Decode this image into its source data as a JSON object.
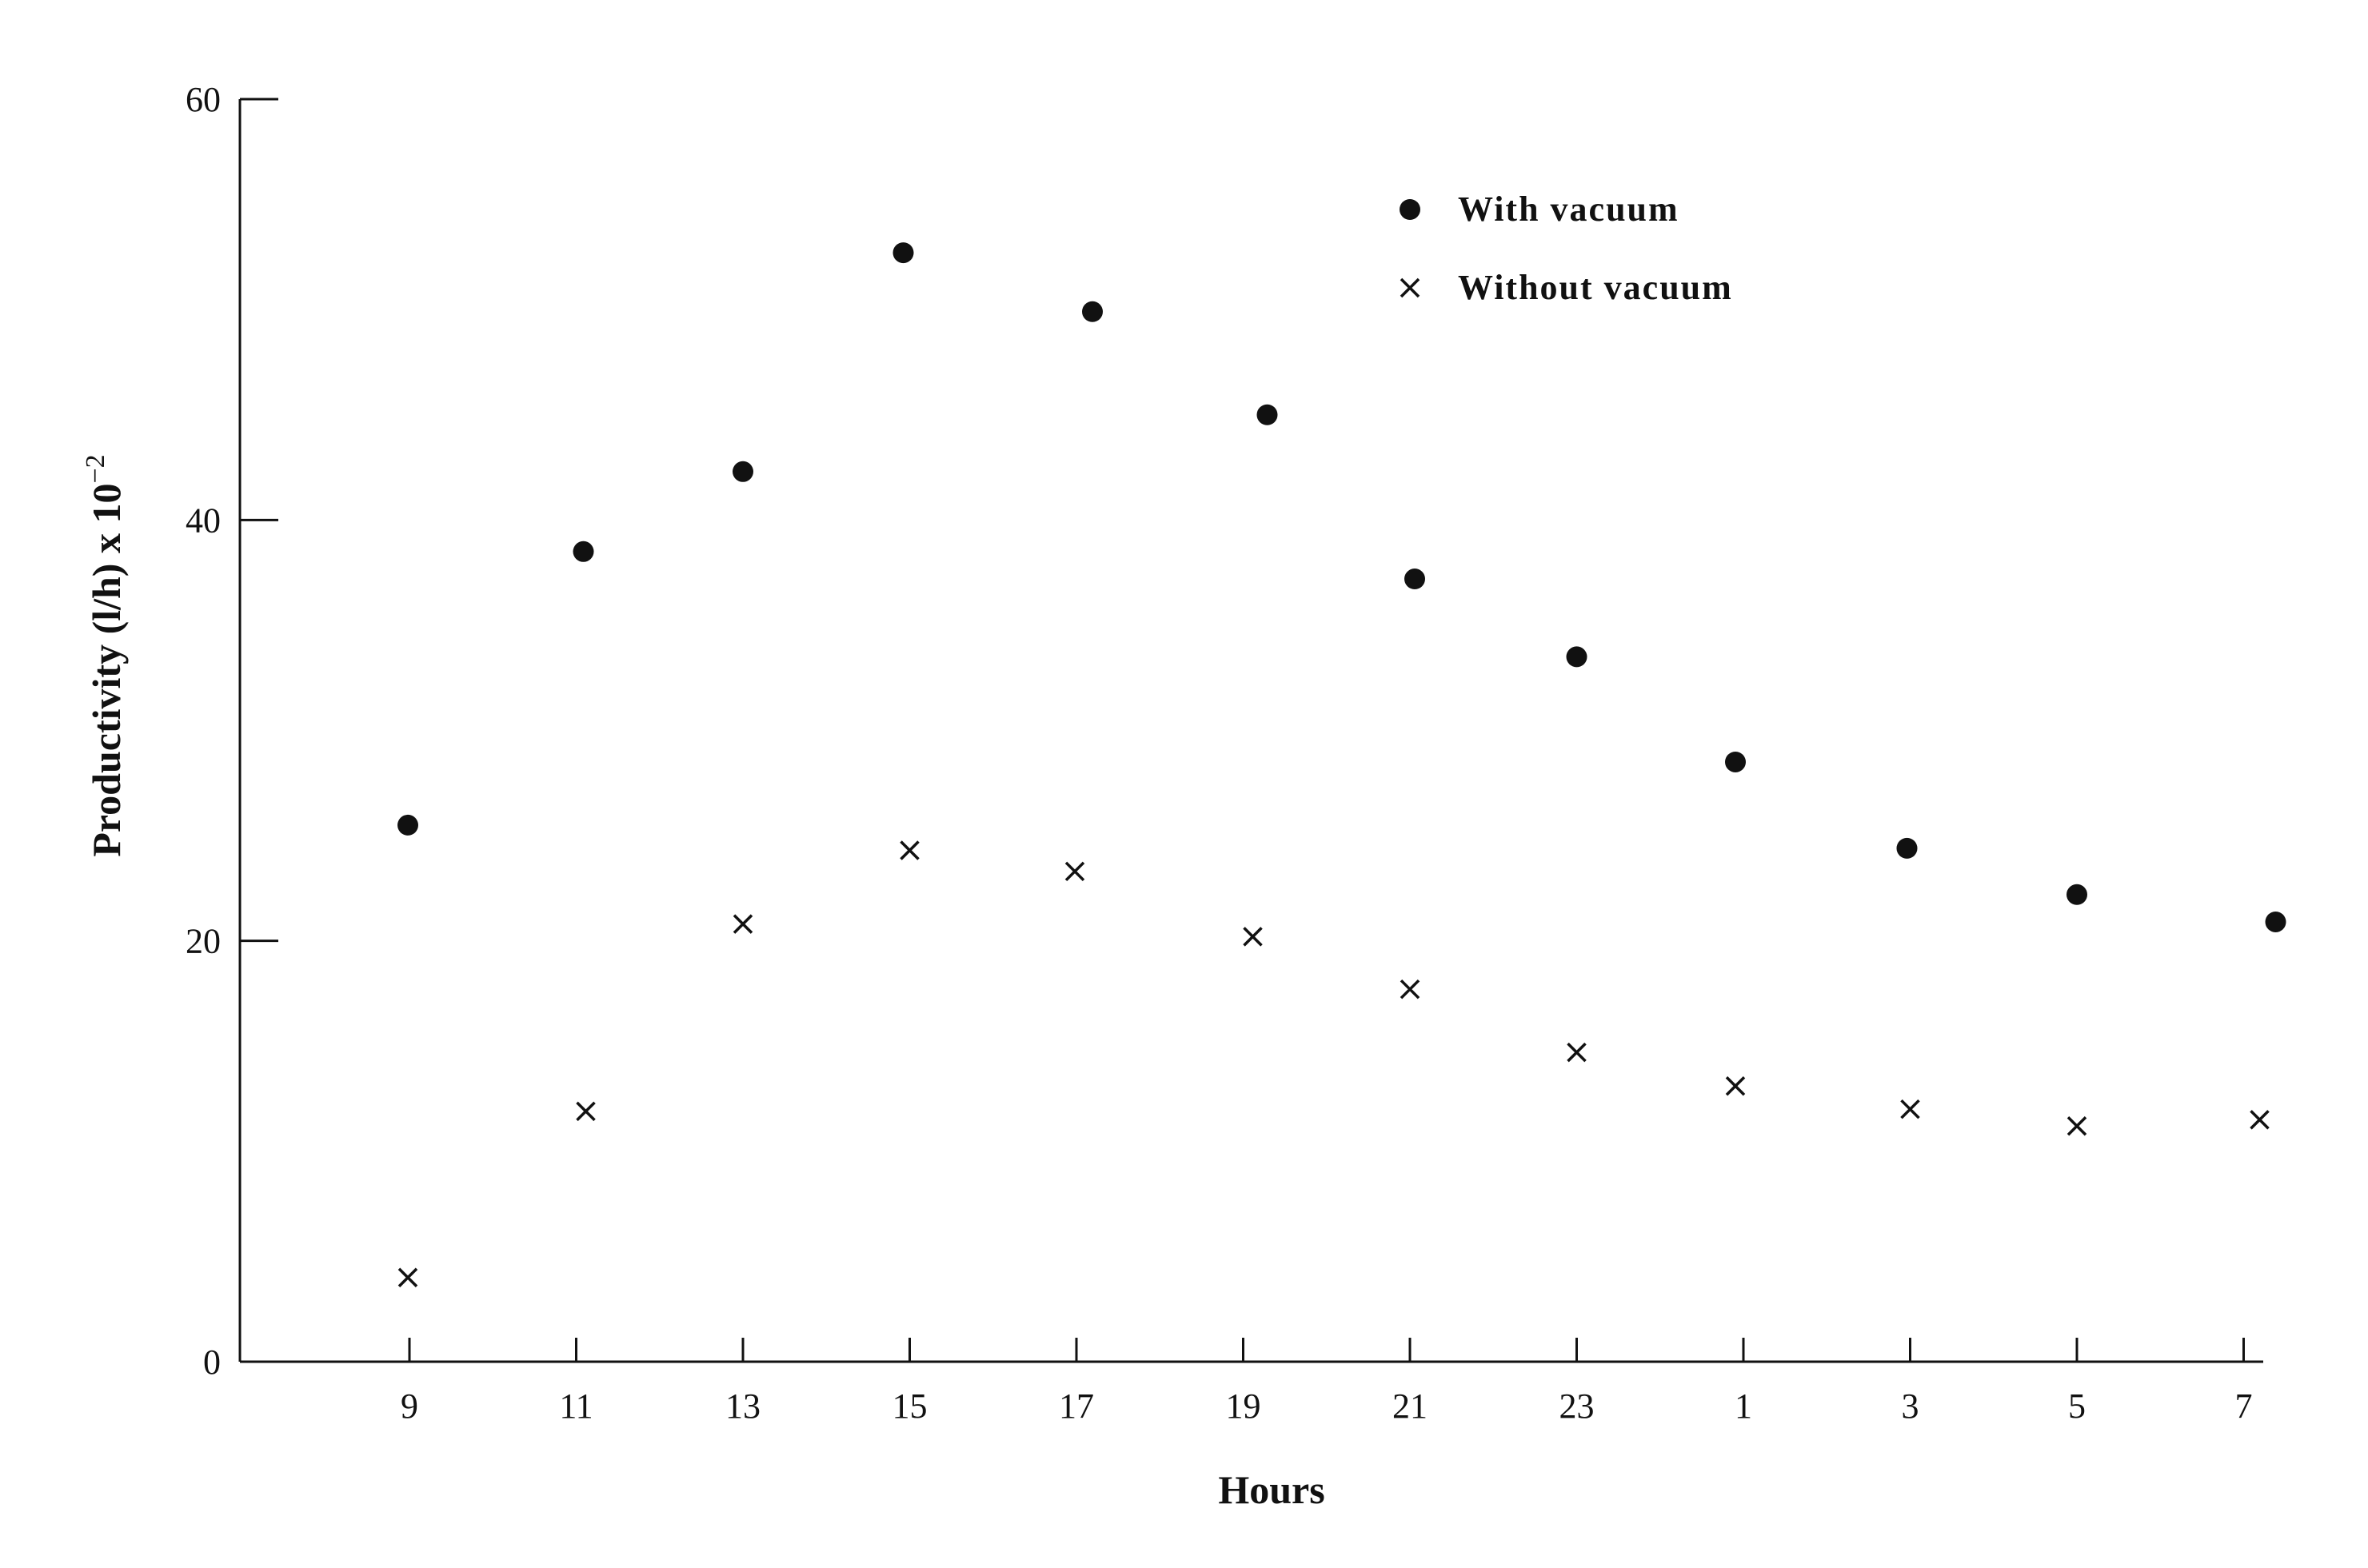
{
  "chart_data": {
    "type": "scatter",
    "title": "",
    "xlabel": "Hours",
    "ylabel": "Productivity (l/h) x 10",
    "ylabel_exponent": "−2",
    "categories": [
      "9",
      "11",
      "13",
      "15",
      "17",
      "19",
      "21",
      "23",
      "1",
      "3",
      "5",
      "7"
    ],
    "ylim": [
      0,
      60
    ],
    "yticks": [
      0,
      20,
      40,
      60
    ],
    "grid": false,
    "legend_position": "top-right",
    "series": [
      {
        "name": "With vacuum",
        "marker": "filled-circle",
        "x": [
          "9",
          "11",
          "13",
          "15",
          "17",
          "19",
          "21",
          "23",
          "1",
          "3",
          "5",
          "7"
        ],
        "values": [
          25.5,
          38.5,
          42.3,
          52.7,
          49.9,
          45.0,
          37.2,
          33.5,
          28.5,
          24.4,
          22.2,
          20.9
        ]
      },
      {
        "name": "Without vacuum",
        "marker": "cross",
        "x": [
          "9",
          "11",
          "13",
          "15",
          "17",
          "19",
          "21",
          "23",
          "1",
          "3",
          "5",
          "7"
        ],
        "values": [
          4.0,
          11.9,
          20.8,
          24.3,
          23.3,
          20.2,
          17.7,
          14.7,
          13.1,
          12.0,
          11.2,
          11.5
        ]
      }
    ]
  }
}
